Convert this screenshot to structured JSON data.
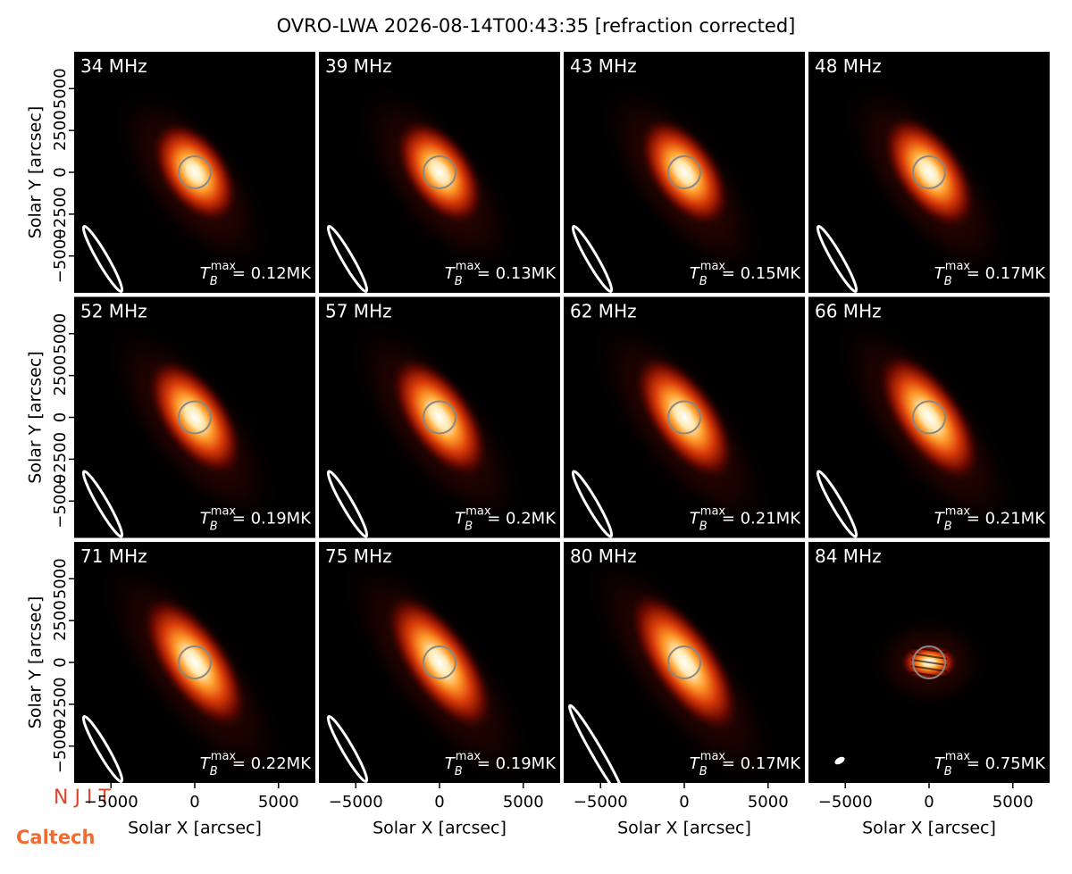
{
  "chart_data": {
    "type": "image-grid",
    "title": "OVRO-LWA 2026-08-14T00:43:35 [refraction corrected]",
    "xlabel": "Solar X [arcsec]",
    "ylabel": "Solar Y [arcsec]",
    "xlim": [
      -7200,
      7200
    ],
    "ylim": [
      -7200,
      7200
    ],
    "xticks": [
      {
        "value": -5000,
        "label": "−5000"
      },
      0,
      5000
    ],
    "yticks": [
      {
        "value": -5000,
        "label": "−5000"
      },
      {
        "value": -2500,
        "label": "−2500"
      },
      0,
      2500,
      5000
    ],
    "tb_symbol": "T",
    "tb_sub": "B",
    "tb_sup": "max",
    "panels": [
      {
        "label": "34 MHz",
        "tmax_label": "= 0.12MK"
      },
      {
        "label": "39 MHz",
        "tmax_label": "= 0.13MK"
      },
      {
        "label": "43 MHz",
        "tmax_label": "= 0.15MK"
      },
      {
        "label": "48 MHz",
        "tmax_label": "= 0.17MK"
      },
      {
        "label": "52 MHz",
        "tmax_label": "= 0.19MK"
      },
      {
        "label": "57 MHz",
        "tmax_label": "= 0.2MK"
      },
      {
        "label": "62 MHz",
        "tmax_label": "= 0.21MK"
      },
      {
        "label": "66 MHz",
        "tmax_label": "= 0.21MK"
      },
      {
        "label": "71 MHz",
        "tmax_label": "= 0.22MK"
      },
      {
        "label": "75 MHz",
        "tmax_label": "= 0.19MK"
      },
      {
        "label": "80 MHz",
        "tmax_label": "= 0.17MK"
      },
      {
        "label": "84 MHz",
        "tmax_label": "= 0.75MK"
      }
    ],
    "logos": [
      "N J I T",
      "Caltech"
    ]
  }
}
